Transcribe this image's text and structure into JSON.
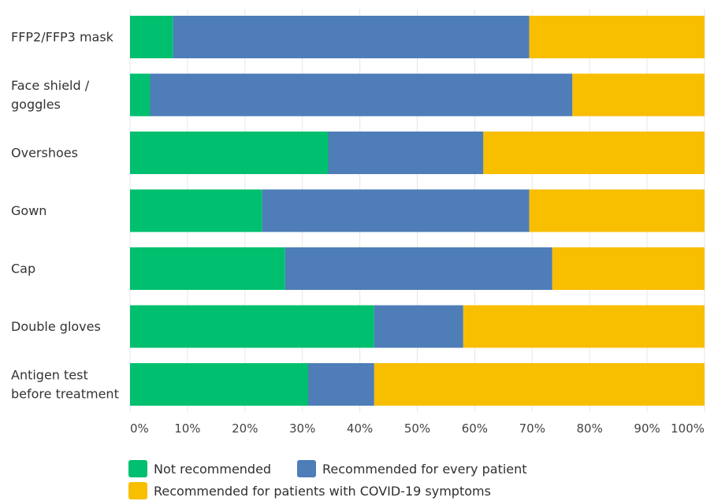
{
  "chart_data": {
    "type": "bar",
    "orientation": "horizontal",
    "stacked": true,
    "title": "",
    "xlabel": "",
    "ylabel": "",
    "xlim": [
      0,
      100
    ],
    "categories": [
      [
        "FFP2/FFP3 mask"
      ],
      [
        "Face shield /",
        "goggles"
      ],
      [
        "Overshoes"
      ],
      [
        "Gown"
      ],
      [
        "Cap"
      ],
      [
        "Double gloves"
      ],
      [
        "Antigen test",
        "before treatment"
      ]
    ],
    "series": [
      {
        "name": "Not recommended",
        "color": "#00bf6f",
        "values": [
          7.5,
          3.5,
          34.5,
          23,
          27,
          42.5,
          31
        ]
      },
      {
        "name": "Recommended for every patient",
        "color": "#4e7db8",
        "values": [
          62,
          73.5,
          27,
          46.5,
          46.5,
          15.5,
          11.5
        ]
      },
      {
        "name": "Recommended for patients with COVID-19 symptoms",
        "color": "#f8be00",
        "values": [
          30.5,
          23,
          38.5,
          30.5,
          26.5,
          42,
          57.5
        ]
      }
    ],
    "xticks": [
      "0%",
      "10%",
      "20%",
      "30%",
      "40%",
      "50%",
      "60%",
      "70%",
      "80%",
      "90%",
      "100%"
    ],
    "grid": true,
    "legend_position": "bottom"
  }
}
